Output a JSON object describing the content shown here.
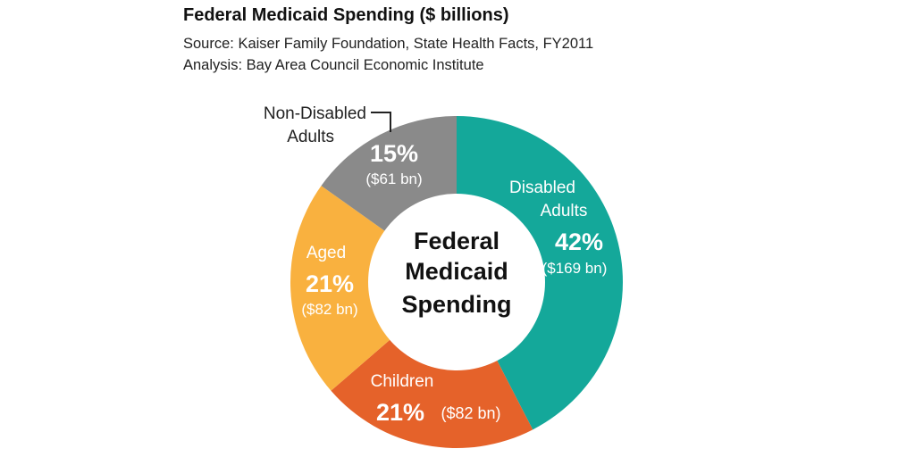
{
  "header": {
    "title": "Federal Medicaid Spending ($ billions)",
    "source": "Source: Kaiser Family Foundation, State Health Facts, FY2011",
    "analysis": "Analysis: Bay Area Council Economic Institute"
  },
  "chart_data": {
    "type": "pie",
    "title": "Federal Medicaid Spending ($ billions)",
    "center_label": [
      "Federal",
      "Medicaid",
      "Spending"
    ],
    "slices": [
      {
        "name": "Disabled Adults",
        "label_lines": [
          "Disabled",
          "Adults"
        ],
        "percent": 42,
        "percent_label": "42%",
        "value": 169,
        "value_label": "($169 bn)",
        "color": "#14A89A"
      },
      {
        "name": "Children",
        "label_lines": [
          "Children"
        ],
        "percent": 21,
        "percent_label": "21%",
        "value": 82,
        "value_label": "($82 bn)",
        "color": "#E5622A"
      },
      {
        "name": "Aged",
        "label_lines": [
          "Aged"
        ],
        "percent": 21,
        "percent_label": "21%",
        "value": 82,
        "value_label": "($82 bn)",
        "color": "#F9B13F"
      },
      {
        "name": "Non-Disabled Adults",
        "label_lines": [
          "Non-Disabled",
          "Adults"
        ],
        "percent": 15,
        "percent_label": "15%",
        "value": 61,
        "value_label": "($61 bn)",
        "color": "#8A8A8A"
      }
    ],
    "inner_label_color": "#ffffff",
    "center_text_color": "#111111"
  }
}
